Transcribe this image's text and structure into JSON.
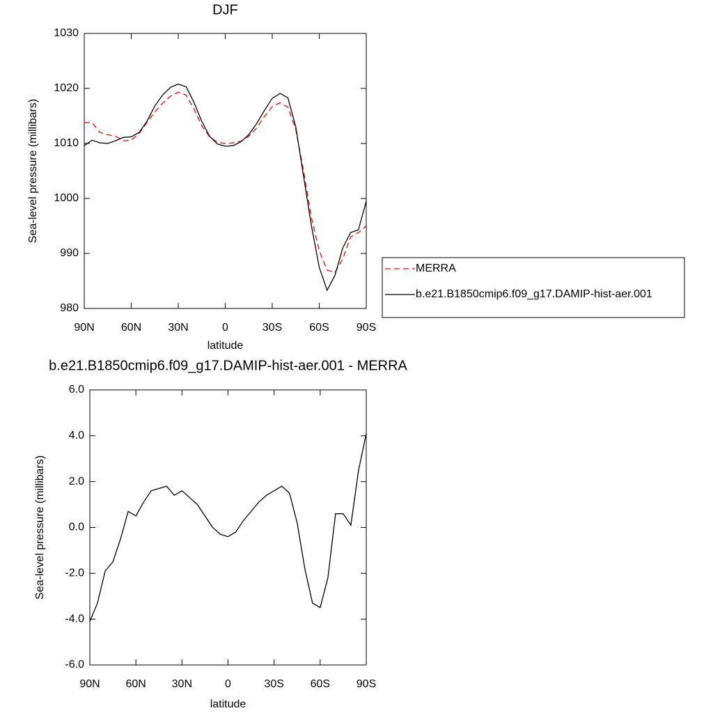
{
  "chart_data": [
    {
      "type": "line",
      "title": "DJF",
      "xlabel": "latitude",
      "ylabel": "Sea-level pressure (millibars)",
      "x": [
        90,
        85,
        80,
        75,
        70,
        65,
        60,
        55,
        50,
        45,
        40,
        35,
        30,
        25,
        20,
        15,
        10,
        5,
        0,
        -5,
        -10,
        -15,
        -20,
        -25,
        -30,
        -35,
        -40,
        -45,
        -50,
        -55,
        -60,
        -65,
        -70,
        -75,
        -80,
        -85,
        -90
      ],
      "xlim": [
        90,
        -90
      ],
      "xticks": [
        {
          "value": 90,
          "label": "90N"
        },
        {
          "value": 60,
          "label": "60N"
        },
        {
          "value": 30,
          "label": "30N"
        },
        0,
        {
          "value": -30,
          "label": "30S"
        },
        {
          "value": -60,
          "label": "60S"
        },
        {
          "value": -90,
          "label": "90S"
        }
      ],
      "ylim": [
        980,
        1030
      ],
      "yticks": [
        980,
        990,
        1000,
        1010,
        1020,
        1030
      ],
      "legend": "right",
      "series": [
        {
          "name": "MERRA",
          "color": "#ff0000",
          "linestyle": "dashed",
          "values": [
            1013.8,
            1013.8,
            1012.0,
            1011.6,
            1011.3,
            1010.5,
            1010.6,
            1011.8,
            1013.8,
            1015.7,
            1017.3,
            1018.6,
            1019.3,
            1018.8,
            1016.3,
            1013.2,
            1011.2,
            1010.2,
            1010.0,
            1010.1,
            1010.4,
            1011.3,
            1012.8,
            1014.9,
            1016.7,
            1017.4,
            1016.6,
            1012.5,
            1005.0,
            996.5,
            990.5,
            987.0,
            986.5,
            989.0,
            993.0,
            993.8,
            995.0
          ]
        },
        {
          "name": "b.e21.B1850cmip6.f09_g17.DAMIP-hist-aer.001",
          "color": "#000000",
          "linestyle": "solid",
          "values": [
            1009.6,
            1010.6,
            1010.1,
            1010.0,
            1010.5,
            1011.1,
            1011.2,
            1012.0,
            1014.0,
            1016.8,
            1018.8,
            1020.2,
            1020.8,
            1020.3,
            1017.5,
            1014.0,
            1011.3,
            1009.9,
            1009.5,
            1009.6,
            1010.3,
            1011.6,
            1013.6,
            1016.0,
            1018.2,
            1019.1,
            1018.3,
            1013.0,
            1004.0,
            995.0,
            987.5,
            983.3,
            986.0,
            991.0,
            993.8,
            994.3,
            999.5
          ]
        }
      ]
    },
    {
      "type": "line",
      "title": "b.e21.B1850cmip6.f09_g17.DAMIP-hist-aer.001 - MERRA",
      "xlabel": "latitude",
      "ylabel": "Sea-level pressure (millibars)",
      "x": [
        90,
        85,
        80,
        75,
        70,
        65,
        60,
        55,
        50,
        45,
        40,
        35,
        30,
        25,
        20,
        15,
        10,
        5,
        0,
        -5,
        -10,
        -15,
        -20,
        -25,
        -30,
        -35,
        -40,
        -45,
        -50,
        -55,
        -60,
        -65,
        -70,
        -75,
        -80,
        -85,
        -90
      ],
      "xlim": [
        90,
        -90
      ],
      "xticks": [
        {
          "value": 90,
          "label": "90N"
        },
        {
          "value": 60,
          "label": "60N"
        },
        {
          "value": 30,
          "label": "30N"
        },
        0,
        {
          "value": -30,
          "label": "30S"
        },
        {
          "value": -60,
          "label": "60S"
        },
        {
          "value": -90,
          "label": "90S"
        }
      ],
      "ylim": [
        -6,
        6
      ],
      "yticks": [
        {
          "value": -6,
          "label": "-6.0"
        },
        {
          "value": -4,
          "label": "-4.0"
        },
        {
          "value": -2,
          "label": "-2.0"
        },
        {
          "value": 0,
          "label": "0.0"
        },
        {
          "value": 2,
          "label": "2.0"
        },
        {
          "value": 4,
          "label": "4.0"
        },
        {
          "value": 6,
          "label": "6.0"
        }
      ],
      "series": [
        {
          "color": "#000000",
          "linestyle": "solid",
          "values": [
            -4.1,
            -3.3,
            -1.9,
            -1.5,
            -0.5,
            0.7,
            0.5,
            1.1,
            1.6,
            1.7,
            1.8,
            1.4,
            1.6,
            1.3,
            1.0,
            0.5,
            0.0,
            -0.3,
            -0.4,
            -0.2,
            0.3,
            0.7,
            1.1,
            1.4,
            1.6,
            1.8,
            1.5,
            0.2,
            -1.8,
            -3.3,
            -3.5,
            -2.2,
            0.6,
            0.6,
            0.1,
            2.5,
            4.1
          ]
        }
      ]
    }
  ]
}
